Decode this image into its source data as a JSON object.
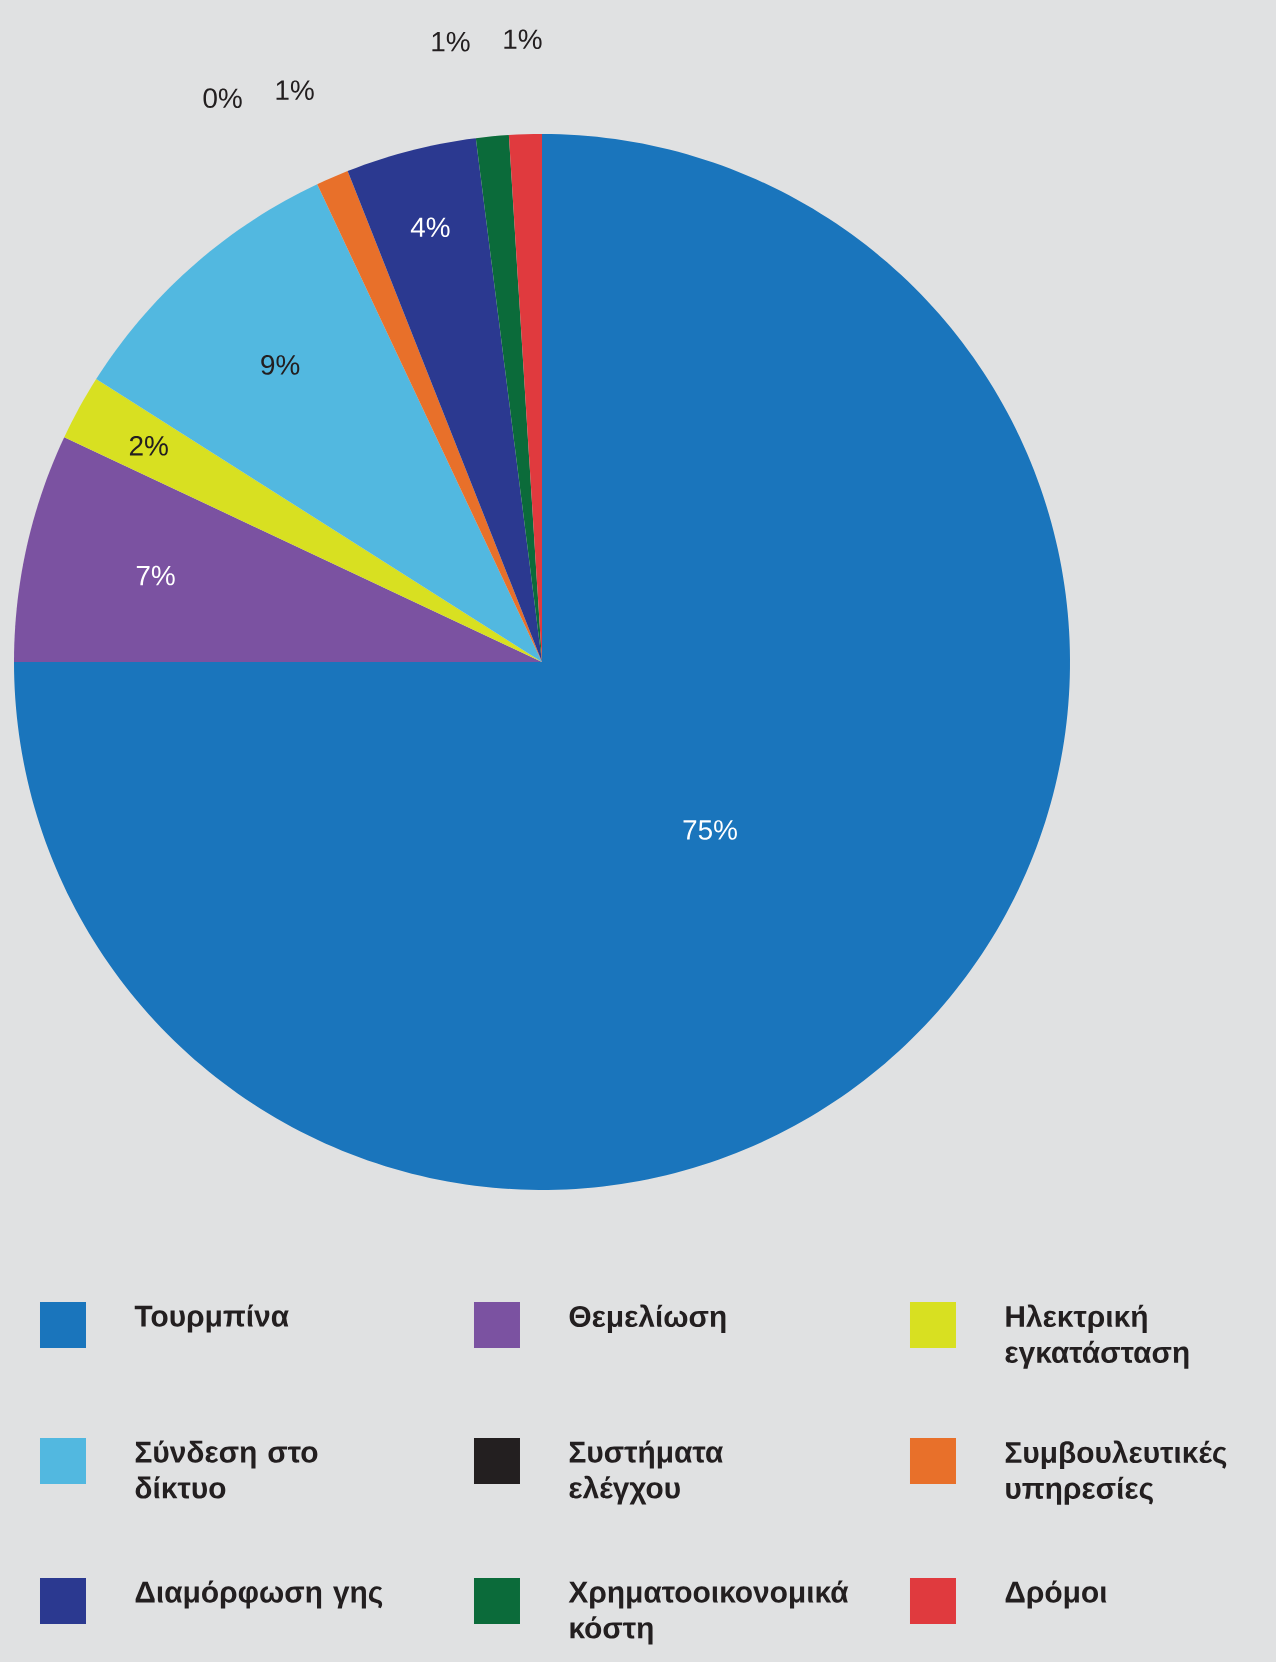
{
  "chart_data": {
    "type": "pie",
    "categories": [
      "Τουρμπίνα",
      "Θεμελίωση",
      "Ηλεκτρική εγκατάσταση",
      "Σύνδεση στο δίκτυο",
      "Συστήματα ελέγχου",
      "Συμβουλευτικές υπηρεσίες",
      "Διαμόρφωση γης",
      "Χρηματοοικονομικά κόστη",
      "Δρόμοι"
    ],
    "values": [
      75,
      7,
      2,
      9,
      0,
      1,
      4,
      1,
      1
    ],
    "value_labels": [
      "75%",
      "7%",
      "2%",
      "9%",
      "0%",
      "1%",
      "4%",
      "1%",
      "1%"
    ],
    "colors": [
      "#1a75bc",
      "#7b52a1",
      "#d8e021",
      "#52b8e0",
      "#231f20",
      "#e8702a",
      "#2b3990",
      "#0b6b3a",
      "#e03a3e"
    ],
    "legend": "bottom"
  }
}
